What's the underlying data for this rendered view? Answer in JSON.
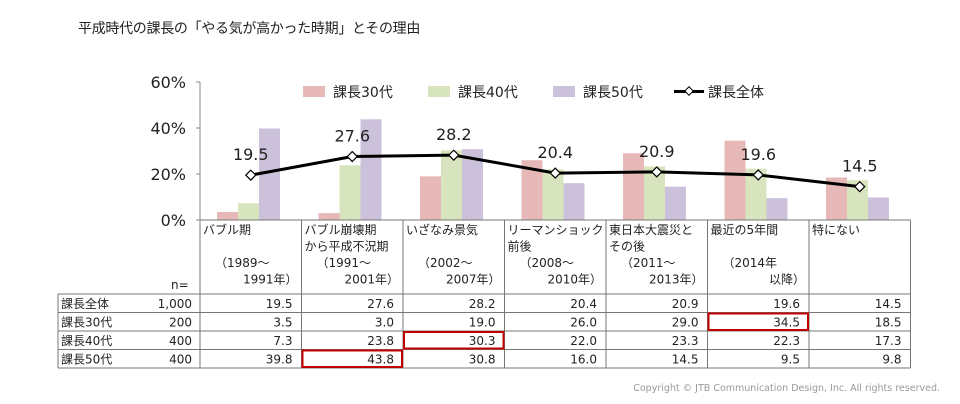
{
  "title": "平成時代の課長の「やる気が高かった時期」とその理由",
  "copyright": "Copyright © JTB Communication Design, Inc. All rights reserved.",
  "colors": {
    "s30": "#e6b9b8",
    "s40": "#d7e4bd",
    "s50": "#ccc1da",
    "total": "#000000",
    "highlight": "#c00000"
  },
  "chart_data": {
    "type": "bar",
    "ylim": [
      0,
      60
    ],
    "ytick_labels": [
      "60%",
      "40%",
      "20%",
      "0%"
    ],
    "legend_position": "top-right",
    "grid": false,
    "categories": [
      [
        "バブル期",
        "",
        "（1989～",
        "1991年）"
      ],
      [
        "バブル崩壊期",
        "から平成不況期",
        "（1991～",
        "2001年）"
      ],
      [
        "いざなみ景気",
        "",
        "（2002～",
        "2007年）"
      ],
      [
        "リーマンショック",
        "前後",
        "（2008～",
        "2010年）"
      ],
      [
        "東日本大震災と",
        "その後",
        "（2011～",
        "2013年）"
      ],
      [
        "最近の5年間",
        "",
        "（2014年",
        "以降）"
      ],
      [
        "特にない",
        "",
        "",
        ""
      ]
    ],
    "series": [
      {
        "name": "課長30代",
        "key": "s30",
        "n": "200",
        "values": [
          3.5,
          3.0,
          19.0,
          26.0,
          29.0,
          34.5,
          18.5
        ]
      },
      {
        "name": "課長40代",
        "key": "s40",
        "n": "400",
        "values": [
          7.3,
          23.8,
          30.3,
          22.0,
          23.3,
          22.3,
          17.3
        ]
      },
      {
        "name": "課長50代",
        "key": "s50",
        "n": "400",
        "values": [
          39.8,
          43.8,
          30.8,
          16.0,
          14.5,
          9.5,
          9.8
        ]
      },
      {
        "name": "課長全体",
        "key": "total",
        "type": "line",
        "n": "1,000",
        "values": [
          19.5,
          27.6,
          28.2,
          20.4,
          20.9,
          19.6,
          14.5
        ]
      }
    ],
    "table": {
      "n_header": "n=",
      "row_order": [
        "total",
        "s30",
        "s40",
        "s50"
      ],
      "highlighted": [
        {
          "series": "s30",
          "category": 5
        },
        {
          "series": "s40",
          "category": 2
        },
        {
          "series": "s50",
          "category": 1
        }
      ]
    }
  }
}
